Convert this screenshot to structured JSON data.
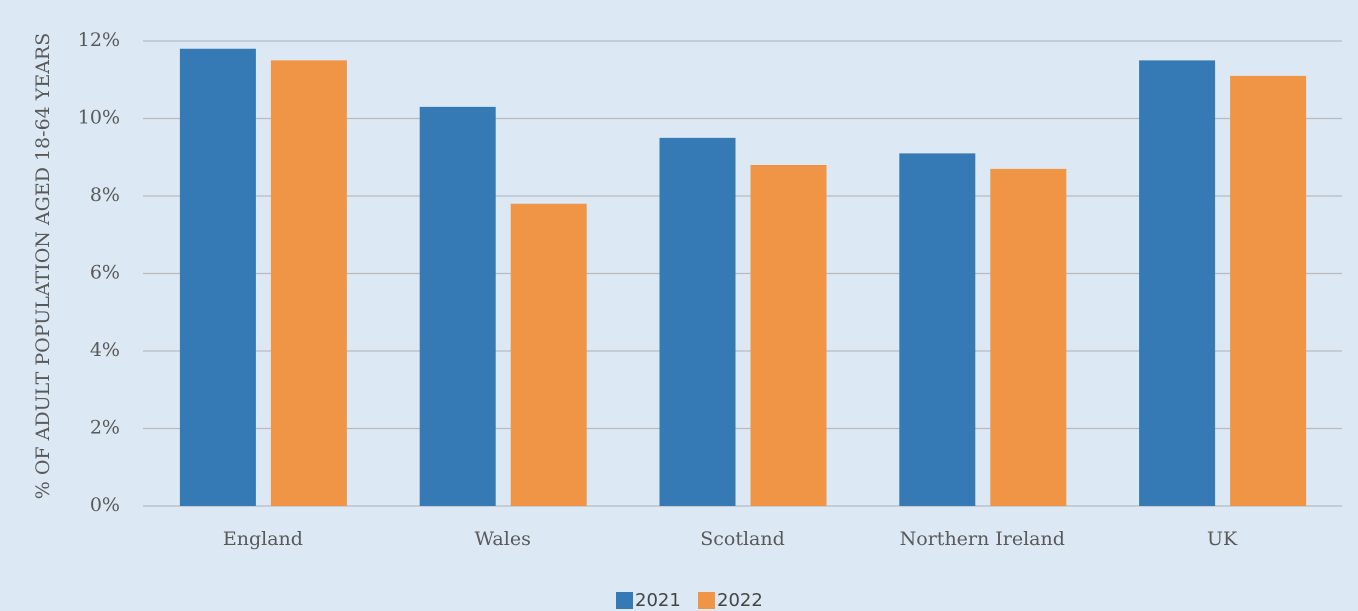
{
  "chart_data": {
    "type": "bar",
    "y_label": "% OF ADULT POPULATION AGED 18-64 YEARS",
    "categories": [
      "England",
      "Wales",
      "Scotland",
      "Northern Ireland",
      "UK"
    ],
    "series": [
      {
        "name": "2021",
        "color": "#357ab4",
        "values": [
          11.8,
          10.3,
          9.5,
          9.1,
          11.5
        ]
      },
      {
        "name": "2022",
        "color": "#f09545",
        "values": [
          11.5,
          7.8,
          8.8,
          8.7,
          11.1
        ]
      }
    ],
    "ylim": [
      0,
      12
    ],
    "yticks": [
      {
        "value": 0,
        "label": "0%"
      },
      {
        "value": 2,
        "label": "2%"
      },
      {
        "value": 4,
        "label": "4%"
      },
      {
        "value": 6,
        "label": "6%"
      },
      {
        "value": 8,
        "label": "8%"
      },
      {
        "value": 10,
        "label": "10%"
      },
      {
        "value": 12,
        "label": "12%"
      }
    ],
    "grid": true,
    "legend": "bottom"
  }
}
